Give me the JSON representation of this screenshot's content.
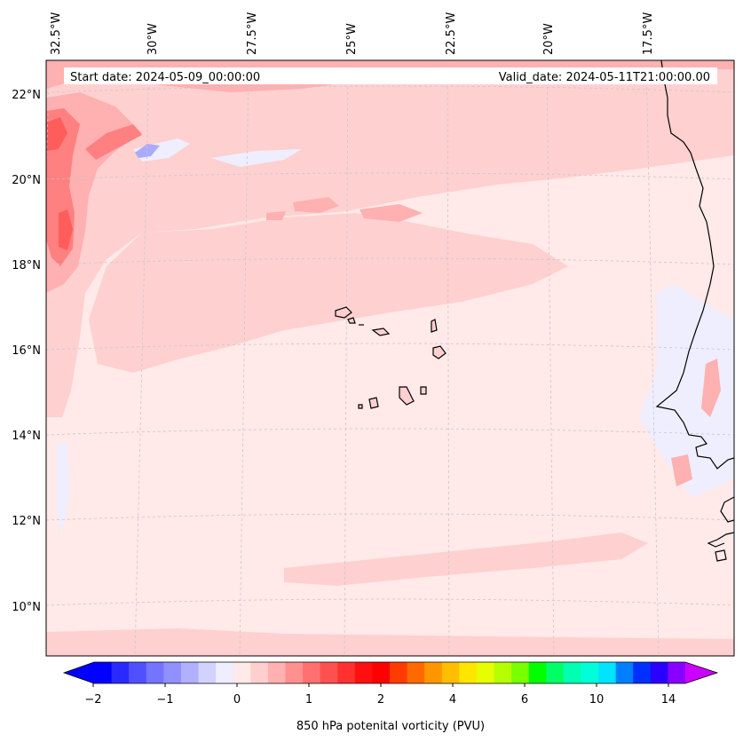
{
  "map": {
    "start_date": "Start date: 2024-05-09_00:00:00",
    "valid_date": "Valid_date: 2024-05-11T21:00:00.00",
    "lon_labels": [
      "32.5°W",
      "30°W",
      "27.5°W",
      "25°W",
      "22.5°W",
      "20°W",
      "17.5°W"
    ],
    "lat_labels": [
      "22°N",
      "20°N",
      "18°N",
      "16°N",
      "14°N",
      "12°N",
      "10°N"
    ],
    "colors": {
      "background_field": "#ffe9e9",
      "light_pink": "#ffd0d0",
      "pink": "#ffb0b0",
      "red": "#ff8080",
      "dark_red": "#ff5c5c",
      "light_blue": "#eeeeff",
      "blue": "#aaaaff",
      "coastline": "#000000",
      "gridline": "#c8c8c8"
    }
  },
  "colorbar": {
    "title": "850 hPa potenital vorticity (PVU)",
    "tick_labels": [
      "−2",
      "−1",
      "0",
      "1",
      "2",
      "4",
      "6",
      "10",
      "14"
    ],
    "colors": [
      "#0000ff",
      "#2a2aff",
      "#5050ff",
      "#7474ff",
      "#9090ff",
      "#b0b0ff",
      "#d2d2ff",
      "#eeeeff",
      "#ffe9e9",
      "#ffcfcf",
      "#ffb0b0",
      "#ff9090",
      "#ff7070",
      "#ff5050",
      "#ff3030",
      "#ff1010",
      "#ff0000",
      "#ff3c00",
      "#ff6a00",
      "#ff9600",
      "#ffbe00",
      "#ffe600",
      "#e6ff00",
      "#b4ff00",
      "#78ff00",
      "#00ff00",
      "#00ff66",
      "#00ffb0",
      "#00ffd8",
      "#00e4ff",
      "#0080ff",
      "#0030ff",
      "#2a00ff",
      "#8800ff"
    ],
    "extend_low_color": "#0000ff",
    "extend_high_color": "#cc00ff"
  }
}
